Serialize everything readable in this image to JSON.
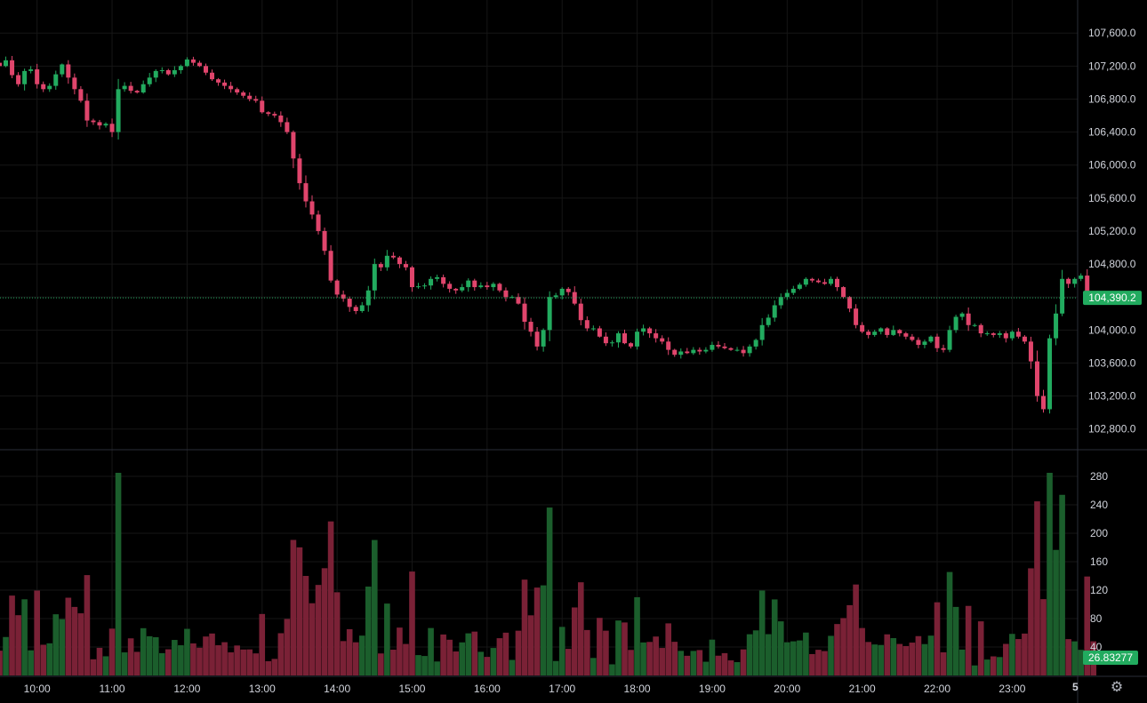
{
  "chart_data": {
    "type": "candlestick",
    "price_axis": {
      "ticks": [
        "107,600.0",
        "107,200.0",
        "106,800.0",
        "106,400.0",
        "106,000.0",
        "105,600.0",
        "105,200.0",
        "104,800.0",
        "104,400.0",
        "104,000.0",
        "103,600.0",
        "103,200.0",
        "102,800.0"
      ],
      "range": [
        102700,
        107850
      ],
      "last_price": 104390.2,
      "last_price_label": "104,390.2"
    },
    "volume_axis": {
      "ticks": [
        "280",
        "240",
        "200",
        "160",
        "120",
        "80",
        "40"
      ],
      "range": [
        0,
        290
      ],
      "last_volume_label": "26.83277"
    },
    "time_axis": {
      "ticks": [
        "10:00",
        "11:00",
        "12:00",
        "13:00",
        "14:00",
        "15:00",
        "16:00",
        "17:00",
        "18:00",
        "19:00",
        "20:00",
        "21:00",
        "22:00",
        "23:00"
      ],
      "bars_per_hour": 12,
      "first_tick_bar": 6
    },
    "interval_label": "5",
    "colors": {
      "up": "#26a69a",
      "down": "#ef5350",
      "up_candle": "#22ab5f",
      "down_candle": "#e0456c",
      "vol_up": "#1b5e2c",
      "vol_down": "#7a2136",
      "price_tag": "#22ab5f"
    },
    "closes": [
      107200,
      107270,
      107090,
      106980,
      107140,
      107160,
      106980,
      106920,
      106960,
      107100,
      107220,
      107060,
      106920,
      106780,
      106540,
      106520,
      106480,
      106500,
      106400,
      106920,
      106960,
      106900,
      106880,
      106980,
      107060,
      107140,
      107150,
      107100,
      107150,
      107200,
      107280,
      107240,
      107200,
      107120,
      107040,
      107000,
      106960,
      106920,
      106880,
      106840,
      106800,
      106780,
      106640,
      106620,
      106600,
      106520,
      106400,
      106080,
      105780,
      105560,
      105400,
      105200,
      104960,
      104600,
      104430,
      104380,
      104280,
      104230,
      104300,
      104480,
      104800,
      104760,
      104900,
      104880,
      104800,
      104760,
      104520,
      104530,
      104540,
      104620,
      104640,
      104560,
      104500,
      104480,
      104520,
      104600,
      104520,
      104540,
      104520,
      104560,
      104480,
      104400,
      104400,
      104320,
      104100,
      103980,
      103800,
      104000,
      104400,
      104420,
      104500,
      104460,
      104320,
      104120,
      104020,
      104020,
      103920,
      103840,
      103850,
      103960,
      103840,
      103800,
      103980,
      104020,
      103960,
      103900,
      103860,
      103760,
      103700,
      103740,
      103720,
      103760,
      103740,
      103760,
      103820,
      103800,
      103780,
      103760,
      103760,
      103720,
      103800,
      103880,
      104060,
      104150,
      104300,
      104400,
      104450,
      104500,
      104550,
      104620,
      104600,
      104580,
      104560,
      104620,
      104520,
      104400,
      104260,
      104060,
      103980,
      103940,
      103980,
      104020,
      103940,
      104000,
      103960,
      103920,
      103880,
      103820,
      103860,
      103920,
      103780,
      103760,
      104000,
      104160,
      104200,
      104060,
      104060,
      103960,
      103960,
      103940,
      103960,
      103900,
      103980,
      103920,
      103860,
      103620,
      103200,
      103040,
      103900,
      104200,
      104620,
      104560,
      104620,
      104660,
      104450,
      104390
    ]
  }
}
